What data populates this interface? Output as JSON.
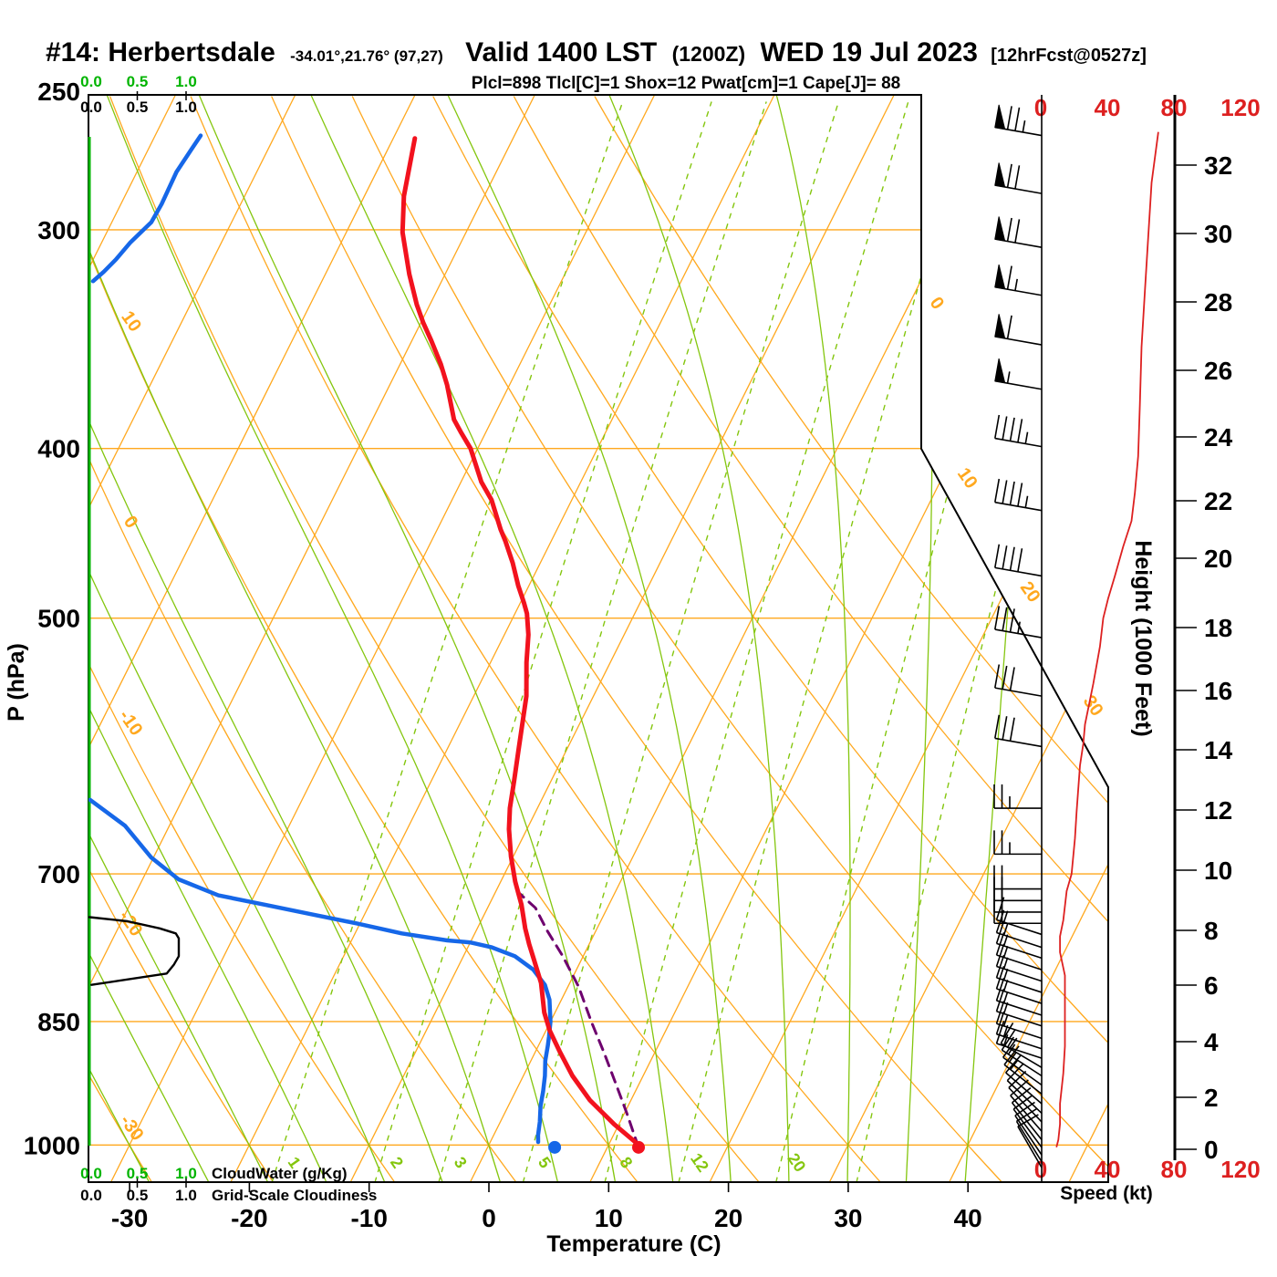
{
  "title": {
    "station": "#14: Herbertsdale",
    "coords": "-34.01°,21.76° (97,27)",
    "valid": "Valid 1400 LST",
    "zulu": "(1200Z)",
    "date": "WED 19 Jul 2023",
    "fcst": "[12hrFcst@0527z]"
  },
  "header": {
    "indices": "Plcl=898 Tlcl[C]=1 Shox=12 Pwat[cm]=1 Cape[J]= 88",
    "plcl": 898,
    "tlcl_c": 1,
    "shox": 12,
    "pwat_cm": 1,
    "cape_j": 88
  },
  "axes": {
    "pressure_title": "P (hPa)",
    "temp_title": "Temperature (C)",
    "height_title": "Height (1000 Feet)",
    "speed_title": "Speed (kt)",
    "pressure_ticks": [
      250,
      300,
      400,
      500,
      700,
      850,
      1000
    ],
    "temp_ticks": [
      -30,
      -20,
      -10,
      0,
      10,
      20,
      30,
      40
    ],
    "height_ticks": [
      0,
      2,
      4,
      6,
      8,
      10,
      12,
      14,
      16,
      18,
      20,
      22,
      24,
      26,
      28,
      30,
      32
    ],
    "speed_ticks": [
      0,
      40,
      80,
      120
    ]
  },
  "legend": {
    "scale": [
      "0.0",
      "0.5",
      "1.0"
    ],
    "cloudwater_label": "CloudWater (g/Kg)",
    "cloudiness_label": "Grid-Scale Cloudiness"
  },
  "chart_data": {
    "type": "line",
    "subtype": "skew-t log-p thermodynamic sounding",
    "pressure_lines_hpa": [
      300,
      400,
      500,
      700,
      850,
      1000
    ],
    "isotherm_labels_c": [
      0,
      10,
      20,
      30
    ],
    "dry_adiabat_labels_c": [
      10,
      0,
      -10,
      -20,
      -30
    ],
    "mixing_ratio_lines_gkg": [
      1,
      2,
      3,
      5,
      8,
      12,
      20,
      30
    ],
    "mixing_ratio_labels_gkg": [
      1,
      2,
      3,
      5,
      8,
      12,
      20
    ],
    "temperature_profile_p_t": [
      [
        266,
        -48.2
      ],
      [
        287,
        -46.7
      ],
      [
        301,
        -45.3
      ],
      [
        318,
        -43.0
      ],
      [
        331,
        -41.1
      ],
      [
        339,
        -39.8
      ],
      [
        347,
        -38.4
      ],
      [
        358,
        -36.6
      ],
      [
        368,
        -35.2
      ],
      [
        385,
        -33.2
      ],
      [
        392,
        -32.0
      ],
      [
        400,
        -30.6
      ],
      [
        418,
        -28.3
      ],
      [
        428,
        -26.7
      ],
      [
        445,
        -24.7
      ],
      [
        452,
        -23.8
      ],
      [
        465,
        -22.3
      ],
      [
        479,
        -20.9
      ],
      [
        490,
        -19.7
      ],
      [
        497,
        -19.0
      ],
      [
        511,
        -18.0
      ],
      [
        530,
        -17.0
      ],
      [
        554,
        -15.6
      ],
      [
        595,
        -14.0
      ],
      [
        619,
        -13.1
      ],
      [
        642,
        -12.3
      ],
      [
        660,
        -11.5
      ],
      [
        684,
        -10.2
      ],
      [
        707,
        -8.8
      ],
      [
        729,
        -7.3
      ],
      [
        752,
        -6.0
      ],
      [
        768,
        -5.0
      ],
      [
        783,
        -4.0
      ],
      [
        808,
        -2.4
      ],
      [
        840,
        -0.9
      ],
      [
        860,
        0.3
      ],
      [
        884,
        2.0
      ],
      [
        913,
        4.1
      ],
      [
        943,
        6.6
      ],
      [
        973,
        9.6
      ],
      [
        996,
        12.1
      ],
      [
        1003,
        12.6
      ]
    ],
    "dewpoint_profile_upper_p_t": [
      [
        265,
        -66.2
      ],
      [
        270,
        -66.4
      ],
      [
        278,
        -66.7
      ],
      [
        290,
        -66.6
      ],
      [
        297,
        -66.7
      ],
      [
        305,
        -67.6
      ],
      [
        312,
        -68.1
      ],
      [
        317,
        -68.6
      ],
      [
        321,
        -69.1
      ]
    ],
    "dewpoint_profile_lower_p_t": [
      [
        635,
        -47.7
      ],
      [
        657,
        -43.7
      ],
      [
        685,
        -40.2
      ],
      [
        705,
        -37.0
      ],
      [
        720,
        -33.0
      ],
      [
        729,
        -28.7
      ],
      [
        738,
        -24.5
      ],
      [
        747,
        -20.3
      ],
      [
        757,
        -16.1
      ],
      [
        764,
        -12.0
      ],
      [
        766,
        -10.0
      ],
      [
        771,
        -8.0
      ],
      [
        780,
        -5.7
      ],
      [
        794,
        -3.6
      ],
      [
        810,
        -2.0
      ],
      [
        826,
        -1.0
      ],
      [
        850,
        0.0
      ],
      [
        867,
        0.5
      ],
      [
        878,
        0.8
      ],
      [
        895,
        1.2
      ],
      [
        913,
        1.8
      ],
      [
        932,
        2.3
      ],
      [
        950,
        2.7
      ],
      [
        970,
        3.3
      ],
      [
        987,
        3.7
      ],
      [
        996,
        4.0
      ]
    ],
    "parcel_path_p_t": [
      [
        1003,
        12.6
      ],
      [
        959,
        10.2
      ],
      [
        925,
        8.2
      ],
      [
        886,
        5.8
      ],
      [
        850,
        3.4
      ],
      [
        812,
        0.9
      ],
      [
        780,
        -1.7
      ],
      [
        754,
        -4.1
      ],
      [
        732,
        -6.0
      ],
      [
        722,
        -7.4
      ],
      [
        717,
        -8.1
      ]
    ],
    "surface": {
      "pressure_hpa": 1003,
      "temp_c": 12.6,
      "dewpoint_c": 5.6
    },
    "cloud_fraction_profile_p_frac": [
      [
        741,
        0.01
      ],
      [
        745,
        0.39
      ],
      [
        752,
        0.71
      ],
      [
        757,
        0.87
      ],
      [
        762,
        0.9
      ],
      [
        780,
        0.9
      ],
      [
        789,
        0.85
      ],
      [
        798,
        0.78
      ],
      [
        810,
        0.03
      ]
    ],
    "cloud_water_profile": "zero everywhere (vertical line at 0.0 g/Kg)",
    "wind_barbs_p_kt": [
      [
        265,
        75
      ],
      [
        286,
        70
      ],
      [
        307,
        70
      ],
      [
        327,
        65
      ],
      [
        349,
        60
      ],
      [
        370,
        55
      ],
      [
        399,
        45
      ],
      [
        434,
        45
      ],
      [
        473,
        40
      ],
      [
        513,
        35
      ],
      [
        554,
        30
      ],
      [
        592,
        30
      ],
      [
        642,
        25
      ],
      [
        682,
        25
      ],
      [
        714,
        20
      ],
      [
        725,
        20
      ],
      [
        736,
        20
      ],
      [
        747,
        20
      ],
      [
        758,
        15
      ],
      [
        771,
        15
      ],
      [
        782,
        15
      ],
      [
        794,
        15
      ],
      [
        806,
        15
      ],
      [
        818,
        15
      ],
      [
        830,
        15
      ],
      [
        843,
        15
      ],
      [
        855,
        15
      ],
      [
        869,
        15
      ],
      [
        881,
        15
      ],
      [
        892,
        15
      ],
      [
        903,
        15
      ],
      [
        913,
        15
      ],
      [
        924,
        15
      ],
      [
        935,
        15
      ],
      [
        947,
        10
      ],
      [
        959,
        10
      ],
      [
        970,
        10
      ],
      [
        982,
        10
      ],
      [
        993,
        10
      ],
      [
        1003,
        10
      ],
      [
        1013,
        10
      ],
      [
        1022,
        10
      ],
      [
        1030,
        10
      ]
    ],
    "speed_profile_p_kt": [
      [
        264,
        70
      ],
      [
        282,
        66
      ],
      [
        303,
        64
      ],
      [
        325,
        62
      ],
      [
        350,
        60
      ],
      [
        377,
        59
      ],
      [
        404,
        58
      ],
      [
        424,
        56
      ],
      [
        440,
        54
      ],
      [
        455,
        49
      ],
      [
        473,
        44
      ],
      [
        487,
        40
      ],
      [
        500,
        37
      ],
      [
        519,
        35
      ],
      [
        545,
        31
      ],
      [
        563,
        28
      ],
      [
        575,
        26
      ],
      [
        590,
        25
      ],
      [
        607,
        23
      ],
      [
        645,
        21
      ],
      [
        668,
        20
      ],
      [
        700,
        18
      ],
      [
        716,
        15
      ],
      [
        744,
        13
      ],
      [
        760,
        11
      ],
      [
        776,
        11
      ],
      [
        800,
        14
      ],
      [
        822,
        14
      ],
      [
        850,
        14
      ],
      [
        878,
        14
      ],
      [
        910,
        13
      ],
      [
        947,
        11
      ],
      [
        973,
        11
      ],
      [
        993,
        10
      ],
      [
        1002,
        9
      ]
    ]
  },
  "colors": {
    "grid_orange": "#FFA81E",
    "adiabat_green": "#84C60E",
    "pure_green": "#00B400",
    "temp_red": "#F2121E",
    "dewpoint_blue": "#1667E8",
    "parcel_purple": "#6E006E",
    "speed_red": "#DD2020",
    "indices_magenta": "#AA0066",
    "frame_black": "#000000"
  }
}
